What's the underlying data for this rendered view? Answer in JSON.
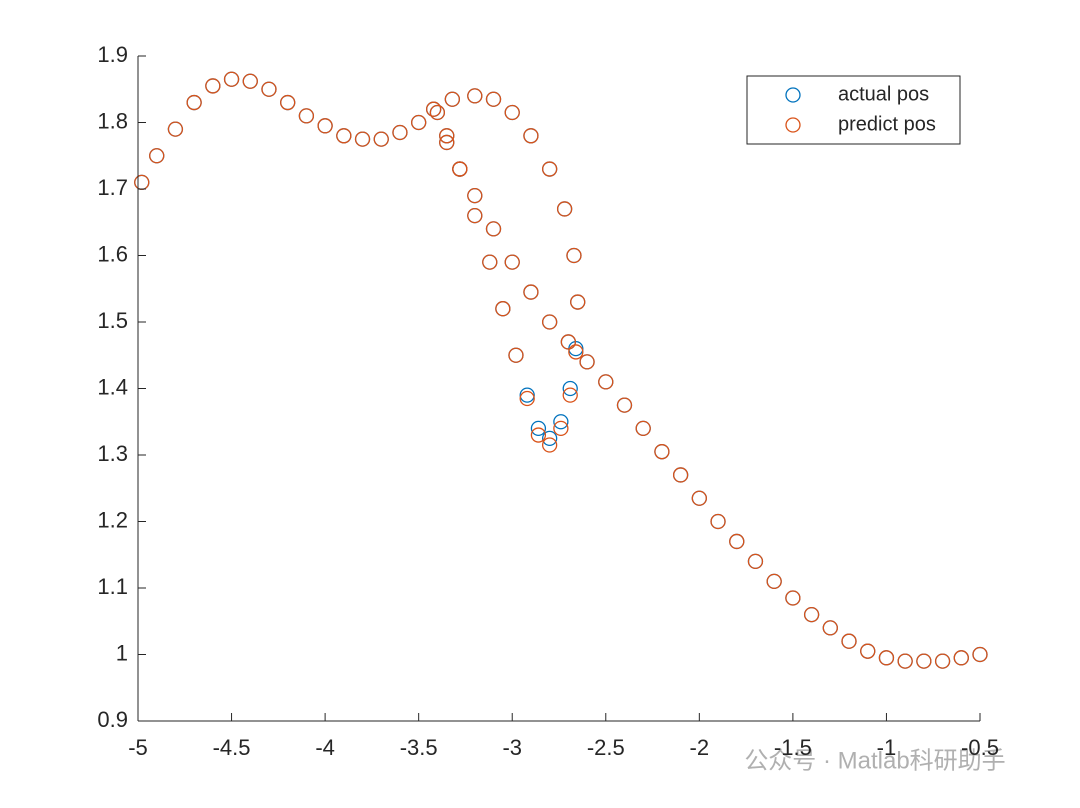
{
  "chart_data": {
    "type": "scatter",
    "x": [
      -4.98,
      -4.9,
      -4.8,
      -4.7,
      -4.6,
      -4.5,
      -4.4,
      -4.3,
      -4.2,
      -4.1,
      -4.0,
      -3.9,
      -3.8,
      -3.7,
      -3.6,
      -3.5,
      -3.42,
      -3.32,
      -3.2,
      -3.1,
      -3.0,
      -2.9,
      -2.8,
      -2.72,
      -2.67,
      -2.65,
      -2.66,
      -2.69,
      -2.74,
      -2.8,
      -2.86,
      -2.92,
      -2.98,
      -3.05,
      -3.12,
      -3.2,
      -3.28,
      -3.35,
      -3.4,
      -3.35,
      -3.28,
      -3.2,
      -3.1,
      -3.0,
      -2.9,
      -2.8,
      -2.7,
      -2.6,
      -2.5,
      -2.4,
      -2.3,
      -2.2,
      -2.1,
      -2.0,
      -1.9,
      -1.8,
      -1.7,
      -1.6,
      -1.5,
      -1.4,
      -1.3,
      -1.2,
      -1.1,
      -1.0,
      -0.9,
      -0.8,
      -0.7,
      -0.6,
      -0.5
    ],
    "series": [
      {
        "name": "actual pos",
        "color": "#0072bd",
        "values": [
          1.71,
          1.75,
          1.79,
          1.83,
          1.855,
          1.865,
          1.862,
          1.85,
          1.83,
          1.81,
          1.795,
          1.78,
          1.775,
          1.775,
          1.785,
          1.8,
          1.82,
          1.835,
          1.84,
          1.835,
          1.815,
          1.78,
          1.73,
          1.67,
          1.6,
          1.53,
          1.46,
          1.4,
          1.35,
          1.325,
          1.34,
          1.39,
          1.45,
          1.52,
          1.59,
          1.66,
          1.73,
          1.78,
          1.815,
          1.77,
          1.73,
          1.69,
          1.64,
          1.59,
          1.545,
          1.5,
          1.47,
          1.44,
          1.41,
          1.375,
          1.34,
          1.305,
          1.27,
          1.235,
          1.2,
          1.17,
          1.14,
          1.11,
          1.085,
          1.06,
          1.04,
          1.02,
          1.005,
          0.995,
          0.99,
          0.99,
          0.99,
          0.995,
          1.0
        ]
      },
      {
        "name": "predict pos",
        "color": "#d95319",
        "values": [
          1.71,
          1.75,
          1.79,
          1.83,
          1.855,
          1.865,
          1.862,
          1.85,
          1.83,
          1.81,
          1.795,
          1.78,
          1.775,
          1.775,
          1.785,
          1.8,
          1.82,
          1.835,
          1.84,
          1.835,
          1.815,
          1.78,
          1.73,
          1.67,
          1.6,
          1.53,
          1.455,
          1.39,
          1.34,
          1.315,
          1.33,
          1.385,
          1.45,
          1.52,
          1.59,
          1.66,
          1.73,
          1.78,
          1.815,
          1.77,
          1.73,
          1.69,
          1.64,
          1.59,
          1.545,
          1.5,
          1.47,
          1.44,
          1.41,
          1.375,
          1.34,
          1.305,
          1.27,
          1.235,
          1.2,
          1.17,
          1.14,
          1.11,
          1.085,
          1.06,
          1.04,
          1.02,
          1.005,
          0.995,
          0.99,
          0.99,
          0.99,
          0.995,
          1.0
        ]
      }
    ],
    "xlim": [
      -5,
      -0.5
    ],
    "ylim": [
      0.9,
      1.9
    ],
    "xticks": [
      -5,
      -4.5,
      -4,
      -3.5,
      -3,
      -2.5,
      -2,
      -1.5,
      -1,
      -0.5
    ],
    "yticks": [
      0.9,
      1,
      1.1,
      1.2,
      1.3,
      1.4,
      1.5,
      1.6,
      1.7,
      1.8,
      1.9
    ],
    "legend": "upper right"
  },
  "watermark": "公众号 · Matlab科研助手"
}
